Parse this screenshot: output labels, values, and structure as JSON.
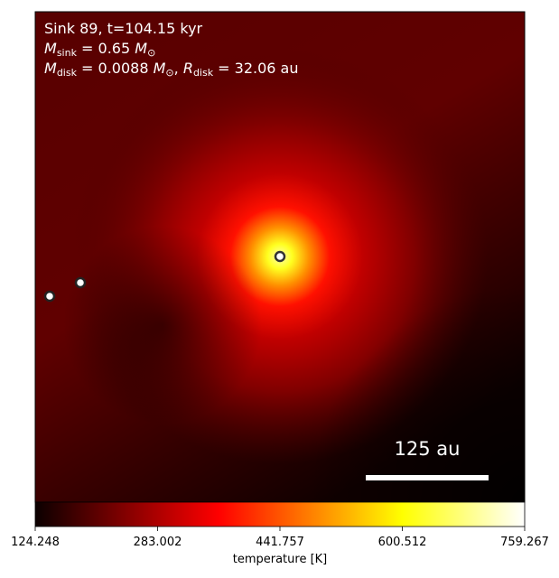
{
  "chart_data": {
    "type": "image",
    "annotation_lines": [
      [
        {
          "text": "Sink 89, t=104.15 kyr"
        }
      ],
      [
        {
          "text": "M",
          "italic": true
        },
        {
          "text": "sink",
          "sub": true
        },
        {
          "text": " = 0.65 "
        },
        {
          "text": "M",
          "italic": true
        },
        {
          "text": "⊙",
          "sub": true
        }
      ],
      [
        {
          "text": "M",
          "italic": true
        },
        {
          "text": "disk",
          "sub": true
        },
        {
          "text": " = 0.0088 "
        },
        {
          "text": "M",
          "italic": true
        },
        {
          "text": "⊙",
          "sub": true
        },
        {
          "text": ", "
        },
        {
          "text": "R",
          "italic": true
        },
        {
          "text": "disk",
          "sub": true
        },
        {
          "text": " = 32.06 au"
        }
      ]
    ],
    "scale_bar_label": "125 au",
    "colorbar": {
      "label": "temperature [K]",
      "colormap": "hot",
      "lim": [
        124.248,
        759.267
      ],
      "ticks": [
        124.248,
        283.002,
        441.757,
        600.512,
        759.267
      ]
    }
  }
}
